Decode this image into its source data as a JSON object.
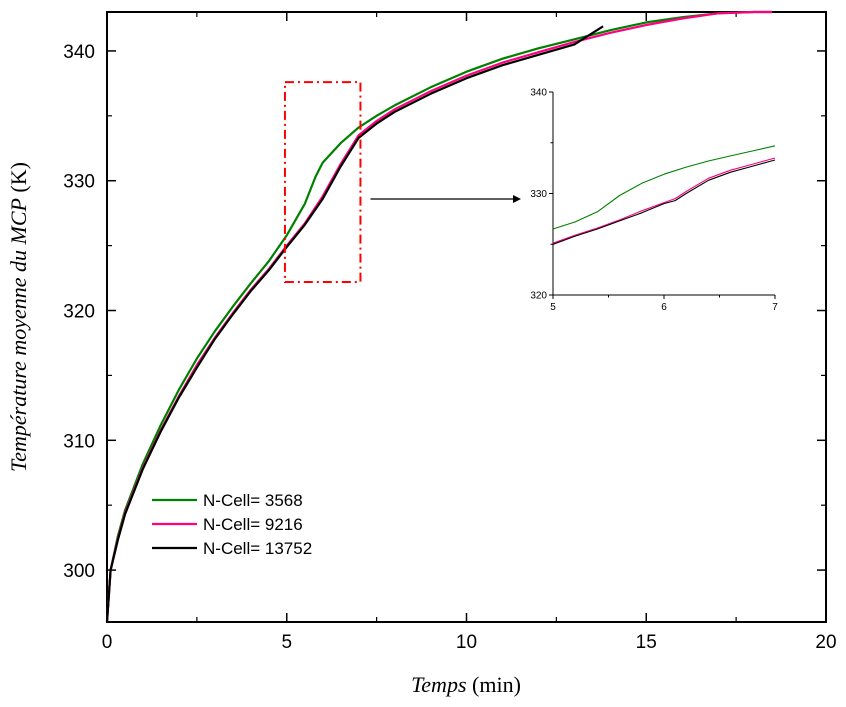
{
  "chart_data": {
    "type": "line",
    "xlabel_italic": "Temps",
    "xlabel_unit": "(min)",
    "ylabel_italic": "Température moyenne du MCP",
    "ylabel_unit": "(K)",
    "xlim": [
      0,
      20
    ],
    "ylim": [
      296,
      343
    ],
    "x_ticks": [
      0,
      5,
      10,
      15,
      20
    ],
    "y_ticks": [
      300,
      310,
      320,
      330,
      340
    ],
    "grid": false,
    "legend_position": "bottom-left",
    "zoom_region": {
      "x": [
        4.95,
        7.05
      ],
      "y": [
        322.2,
        337.6
      ]
    },
    "series": [
      {
        "name": "N-Cell= 3568",
        "color": "#008000",
        "points": [
          [
            0,
            296
          ],
          [
            0.1,
            300
          ],
          [
            0.3,
            302.6
          ],
          [
            0.5,
            304.6
          ],
          [
            1,
            308.2
          ],
          [
            1.5,
            311.2
          ],
          [
            2,
            313.9
          ],
          [
            2.5,
            316.3
          ],
          [
            3,
            318.4
          ],
          [
            3.5,
            320.3
          ],
          [
            4,
            322.1
          ],
          [
            4.5,
            323.8
          ],
          [
            5,
            325.8
          ],
          [
            5.5,
            328.2
          ],
          [
            5.8,
            330.3
          ],
          [
            6,
            331.4
          ],
          [
            6.5,
            332.9
          ],
          [
            7,
            334.1
          ],
          [
            7.5,
            335
          ],
          [
            8,
            335.8
          ],
          [
            9,
            337.2
          ],
          [
            10,
            338.4
          ],
          [
            11,
            339.4
          ],
          [
            12,
            340.2
          ],
          [
            13,
            340.9
          ],
          [
            14,
            341.6
          ],
          [
            15,
            342.2
          ],
          [
            16,
            342.6
          ],
          [
            17,
            342.9
          ],
          [
            18,
            343
          ],
          [
            18.5,
            343
          ]
        ]
      },
      {
        "name": "N-Cell= 9216",
        "color": "#ff0080",
        "points": [
          [
            0,
            296
          ],
          [
            0.1,
            300
          ],
          [
            0.3,
            302.4
          ],
          [
            0.5,
            304.4
          ],
          [
            1,
            307.9
          ],
          [
            1.5,
            310.8
          ],
          [
            2,
            313.4
          ],
          [
            2.5,
            315.8
          ],
          [
            3,
            317.9
          ],
          [
            3.5,
            319.8
          ],
          [
            4,
            321.6
          ],
          [
            4.5,
            323.2
          ],
          [
            5,
            325
          ],
          [
            5.5,
            326.7
          ],
          [
            6,
            328.8
          ],
          [
            6.5,
            331.3
          ],
          [
            7,
            333.5
          ],
          [
            7.5,
            334.6
          ],
          [
            8,
            335.5
          ],
          [
            9,
            336.9
          ],
          [
            10,
            338.1
          ],
          [
            11,
            339.1
          ],
          [
            12,
            339.9
          ],
          [
            13,
            340.7
          ],
          [
            14,
            341.4
          ],
          [
            15,
            342
          ],
          [
            16,
            342.5
          ],
          [
            17,
            342.9
          ],
          [
            18,
            343
          ],
          [
            18.5,
            343
          ]
        ]
      },
      {
        "name": "N-Cell= 13752",
        "color": "#000000",
        "points": [
          [
            0,
            296
          ],
          [
            0.1,
            300
          ],
          [
            0.3,
            302.3
          ],
          [
            0.5,
            304.3
          ],
          [
            1,
            307.8
          ],
          [
            1.5,
            310.7
          ],
          [
            2,
            313.3
          ],
          [
            2.5,
            315.6
          ],
          [
            3,
            317.8
          ],
          [
            3.5,
            319.7
          ],
          [
            4,
            321.5
          ],
          [
            4.5,
            323.1
          ],
          [
            5,
            324.9
          ],
          [
            5.5,
            326.6
          ],
          [
            6,
            328.6
          ],
          [
            6.5,
            331.1
          ],
          [
            7,
            333.3
          ],
          [
            7.5,
            334.4
          ],
          [
            8,
            335.3
          ],
          [
            9,
            336.7
          ],
          [
            10,
            337.9
          ],
          [
            11,
            338.9
          ],
          [
            12,
            339.7
          ],
          [
            13,
            340.5
          ],
          [
            13.8,
            341.9
          ]
        ]
      }
    ],
    "inset": {
      "xlim": [
        5,
        7
      ],
      "ylim": [
        320,
        340
      ],
      "x_ticks": [
        5,
        6,
        7
      ],
      "y_ticks": [
        320,
        330,
        340
      ],
      "series": [
        {
          "name": "N-Cell= 3568",
          "color": "#008000",
          "points": [
            [
              5,
              326.5
            ],
            [
              5.2,
              327.2
            ],
            [
              5.4,
              328.2
            ],
            [
              5.6,
              329.8
            ],
            [
              5.8,
              331
            ],
            [
              6,
              331.9
            ],
            [
              6.2,
              332.6
            ],
            [
              6.4,
              333.2
            ],
            [
              6.6,
              333.7
            ],
            [
              6.8,
              334.2
            ],
            [
              7,
              334.7
            ]
          ]
        },
        {
          "name": "N-Cell= 9216",
          "color": "#ff0080",
          "points": [
            [
              5,
              325.1
            ],
            [
              5.2,
              325.9
            ],
            [
              5.4,
              326.6
            ],
            [
              5.6,
              327.4
            ],
            [
              5.8,
              328.3
            ],
            [
              6,
              329.1
            ],
            [
              6.1,
              329.5
            ],
            [
              6.2,
              330.2
            ],
            [
              6.4,
              331.5
            ],
            [
              6.6,
              332.3
            ],
            [
              6.8,
              332.9
            ],
            [
              7,
              333.5
            ]
          ]
        },
        {
          "name": "N-Cell= 13752",
          "color": "#000000",
          "points": [
            [
              5,
              325
            ],
            [
              5.2,
              325.8
            ],
            [
              5.4,
              326.5
            ],
            [
              5.6,
              327.3
            ],
            [
              5.8,
              328.1
            ],
            [
              6,
              329
            ],
            [
              6.1,
              329.3
            ],
            [
              6.2,
              330
            ],
            [
              6.4,
              331.3
            ],
            [
              6.6,
              332.1
            ],
            [
              6.8,
              332.7
            ],
            [
              7,
              333.3
            ]
          ]
        }
      ]
    }
  }
}
